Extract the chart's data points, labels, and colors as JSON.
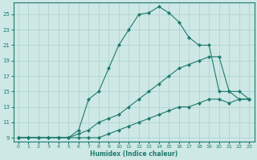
{
  "xlabel": "Humidex (Indice chaleur)",
  "background_color": "#cde8e5",
  "grid_color": "#afd4d0",
  "line_color": "#1e7a6e",
  "xlim": [
    -0.5,
    23.5
  ],
  "ylim": [
    8.5,
    26.5
  ],
  "xticks": [
    0,
    1,
    2,
    3,
    4,
    5,
    6,
    7,
    8,
    9,
    10,
    11,
    12,
    13,
    14,
    15,
    16,
    17,
    18,
    19,
    20,
    21,
    22,
    23
  ],
  "yticks": [
    9,
    11,
    13,
    15,
    17,
    19,
    21,
    23,
    25
  ],
  "line1_x": [
    0,
    1,
    2,
    3,
    4,
    5,
    6,
    7,
    8,
    9,
    10,
    11,
    12,
    13,
    14,
    15,
    16,
    17,
    18,
    19,
    20,
    21,
    22,
    23
  ],
  "line1_y": [
    9,
    9,
    9,
    9,
    9,
    9,
    9,
    9,
    9,
    9.5,
    10,
    10.5,
    11,
    11.5,
    12,
    12.5,
    13,
    13,
    13.5,
    14,
    14,
    13.5,
    14,
    14
  ],
  "line2_x": [
    0,
    1,
    2,
    3,
    4,
    5,
    6,
    7,
    8,
    9,
    10,
    11,
    12,
    13,
    14,
    15,
    16,
    17,
    18,
    19,
    20,
    21,
    22,
    23
  ],
  "line2_y": [
    9,
    9,
    9,
    9,
    9,
    9,
    9.5,
    10,
    11,
    11.5,
    12,
    13,
    14,
    15,
    16,
    17,
    18,
    18.5,
    19,
    19.5,
    19.5,
    15,
    14,
    14
  ],
  "line3_x": [
    0,
    1,
    2,
    3,
    4,
    5,
    6,
    7,
    8,
    9,
    10,
    11,
    12,
    13,
    14,
    15,
    16,
    17,
    18,
    19,
    20,
    21,
    22,
    23
  ],
  "line3_y": [
    9,
    9,
    9,
    9,
    9,
    9,
    10,
    14,
    15,
    18,
    21,
    23,
    25,
    25.2,
    26,
    25.2,
    24,
    22,
    21,
    21,
    15,
    15,
    15,
    14
  ]
}
